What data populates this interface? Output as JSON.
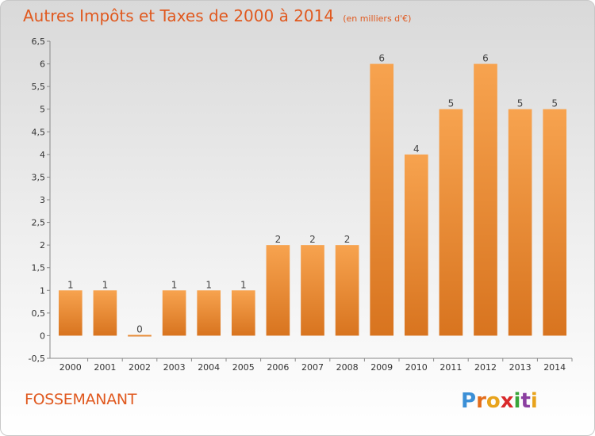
{
  "header": {
    "title": "Autres Impôts et Taxes de 2000 à 2014",
    "subtitle": "(en milliers d'€)"
  },
  "footer": {
    "commune": "FOSSEMANANT",
    "brand": {
      "letters": [
        "P",
        "r",
        "o",
        "x",
        "i",
        "t",
        "i"
      ],
      "colors": [
        "#3b8fd6",
        "#e36c1a",
        "#e8a31c",
        "#d9292b",
        "#3aa53a",
        "#8b3fa0",
        "#e8a31c"
      ]
    }
  },
  "chart_data": {
    "type": "bar",
    "title": "Autres Impôts et Taxes de 2000 à 2014",
    "subtitle": "(en milliers d'€)",
    "categories": [
      "2000",
      "2001",
      "2002",
      "2003",
      "2004",
      "2005",
      "2006",
      "2007",
      "2008",
      "2009",
      "2010",
      "2011",
      "2012",
      "2013",
      "2014"
    ],
    "values": [
      1,
      1,
      0,
      1,
      1,
      1,
      2,
      2,
      2,
      6,
      4,
      5,
      6,
      5,
      5
    ],
    "data_labels": [
      "1",
      "1",
      "0",
      "1",
      "1",
      "1",
      "2",
      "2",
      "2",
      "6",
      "4",
      "5",
      "6",
      "5",
      "5"
    ],
    "ylim": [
      -0.5,
      6.5
    ],
    "yticks": [
      -0.5,
      0,
      0.5,
      1,
      1.5,
      2,
      2.5,
      3,
      3.5,
      4,
      4.5,
      5,
      5.5,
      6,
      6.5
    ],
    "ytick_labels": [
      "-0,5",
      "0",
      "0,5",
      "1",
      "1,5",
      "2",
      "2,5",
      "3",
      "3,5",
      "4",
      "4,5",
      "5",
      "5,5",
      "6",
      "6,5"
    ],
    "grid": false,
    "colors": {
      "bar_light": "#f7a34f",
      "bar_dark": "#d8741f",
      "axis": "#888888"
    }
  }
}
